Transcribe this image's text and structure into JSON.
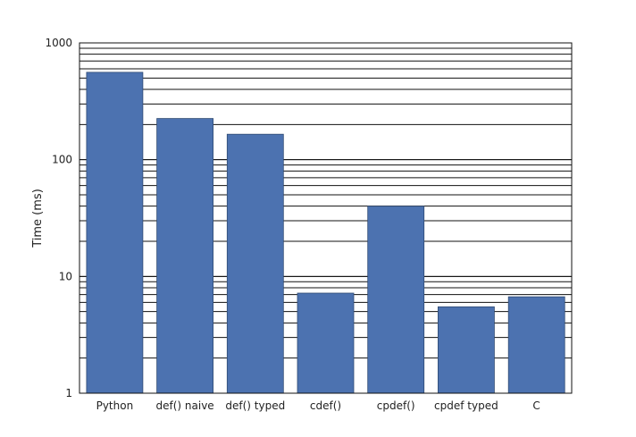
{
  "chart_data": {
    "type": "bar",
    "title": "",
    "xlabel": "",
    "ylabel": "Time (ms)",
    "yscale": "log",
    "ylim": [
      1,
      1000
    ],
    "yticks": [
      "1",
      "10",
      "100",
      "1000"
    ],
    "grid": "horizontal, major and minor",
    "categories": [
      "Python",
      "def() naive",
      "def() typed",
      "cdef()",
      "cpdef()",
      "cpdef typed",
      "C"
    ],
    "values": [
      560,
      225,
      165,
      7.2,
      40,
      5.5,
      6.7
    ],
    "bar_color": "#4c72b0",
    "bar_edge_color": "#2f4a73"
  }
}
